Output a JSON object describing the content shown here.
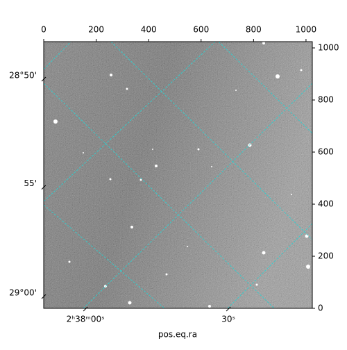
{
  "chart_data": {
    "type": "image",
    "xlabel": "pos.eq.ra",
    "xlim": [
      0,
      1024
    ],
    "ylim": [
      0,
      1024
    ],
    "xticks": [
      0,
      200,
      400,
      600,
      800,
      1000
    ],
    "yticks": [
      0,
      200,
      400,
      600,
      800,
      1000
    ],
    "ra_ticks": [
      {
        "value": 159,
        "label": "2ʰ38ᵐ00ˢ"
      },
      {
        "value": 704,
        "label": "30ˢ"
      }
    ],
    "dec_ticks": [
      {
        "value": 880,
        "label": "28°50'"
      },
      {
        "value": 465,
        "label": "55'"
      },
      {
        "value": 45,
        "label": "29°00'"
      }
    ]
  }
}
